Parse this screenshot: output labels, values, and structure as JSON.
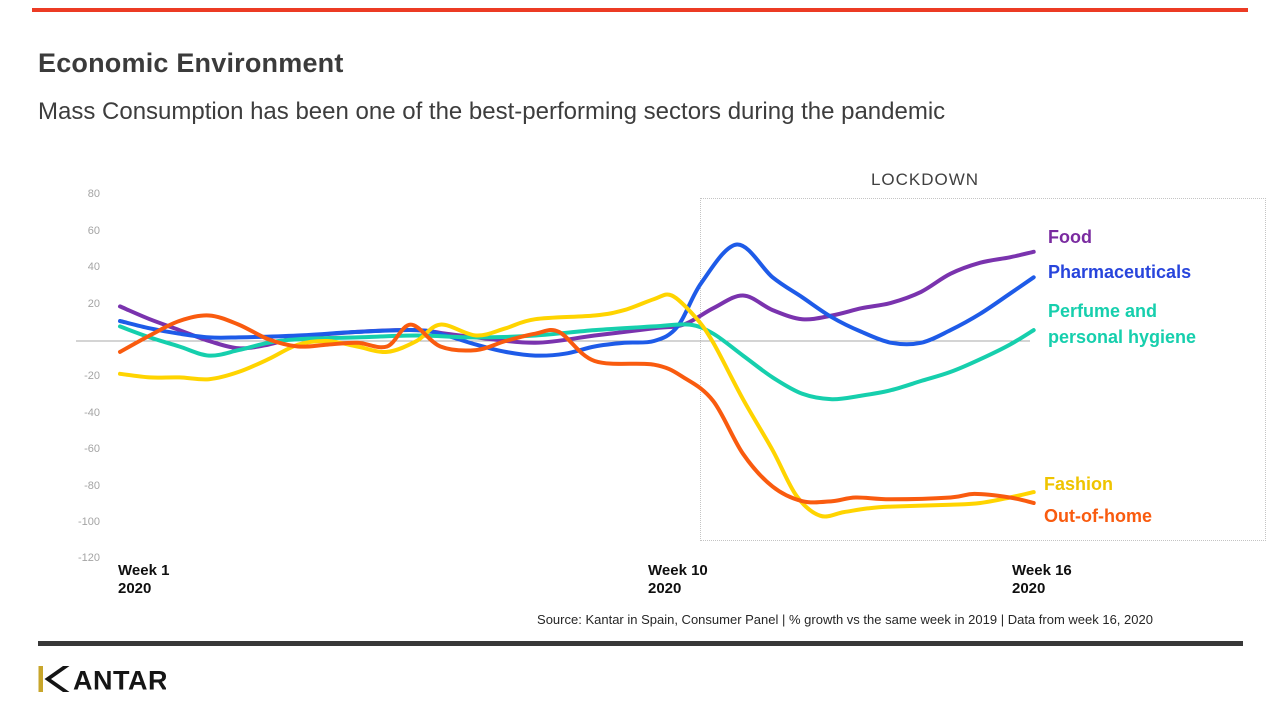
{
  "slide": {
    "title": "Economic Environment",
    "subtitle": "Mass Consumption has been one of the best-performing sectors during the pandemic",
    "source": "Source: Kantar in Spain, Consumer Panel | % growth vs the same week in 2019 | Data from week 16, 2020",
    "logo_text": "KANTAR",
    "colors": {
      "accent_bar": "#EC3B24",
      "footer_bar": "#383838",
      "logo_gold": "#C8A62B",
      "logo_black": "#151515",
      "zero_axis": "#a8a8a8"
    }
  },
  "chart_data": {
    "type": "line",
    "x_unit": "week of 2020",
    "x_range": [
      1,
      16.4
    ],
    "ylim": [
      -120,
      80
    ],
    "y_ticks": [
      80,
      60,
      40,
      20,
      -20,
      -40,
      -60,
      -80,
      -100,
      -120
    ],
    "grid": "zero-line-only",
    "legend_position": "right-inline-colored-labels",
    "annotation": {
      "label": "LOCKDOWN",
      "region_weeks": [
        10.8,
        16.4
      ]
    },
    "x_tick_labels": [
      {
        "week": 1,
        "text": "Week 1\n2020"
      },
      {
        "week": 10,
        "text": "Week 10\n2020"
      },
      {
        "week": 16,
        "text": "Week 16\n2020"
      }
    ],
    "series": [
      {
        "name": "Food",
        "label": "Food",
        "line_color": "#7A33AE",
        "label_color": "#7A2BA0",
        "points": [
          [
            1,
            19
          ],
          [
            1.5,
            12
          ],
          [
            2,
            6
          ],
          [
            2.5,
            0
          ],
          [
            3,
            -4
          ],
          [
            3.5,
            -2
          ],
          [
            4,
            2
          ],
          [
            5,
            5
          ],
          [
            6,
            6
          ],
          [
            6.5,
            4
          ],
          [
            7,
            2
          ],
          [
            8,
            -1
          ],
          [
            9,
            3
          ],
          [
            10,
            7
          ],
          [
            10.5,
            9
          ],
          [
            11,
            18
          ],
          [
            11.5,
            25
          ],
          [
            12,
            17
          ],
          [
            12.5,
            12
          ],
          [
            13,
            14
          ],
          [
            13.5,
            18
          ],
          [
            14,
            21
          ],
          [
            14.5,
            27
          ],
          [
            15,
            37
          ],
          [
            15.5,
            43
          ],
          [
            16,
            46
          ],
          [
            16.4,
            49
          ]
        ]
      },
      {
        "name": "Pharmaceuticals",
        "label": "Pharmaceuticals",
        "line_color": "#1E5BE8",
        "label_color": "#2845DC",
        "points": [
          [
            1,
            11
          ],
          [
            1.5,
            7
          ],
          [
            2,
            4
          ],
          [
            2.5,
            2
          ],
          [
            3,
            2
          ],
          [
            4,
            3
          ],
          [
            5,
            5
          ],
          [
            6,
            6
          ],
          [
            6.5,
            3
          ],
          [
            7,
            -2
          ],
          [
            7.5,
            -6
          ],
          [
            8,
            -8
          ],
          [
            8.5,
            -7
          ],
          [
            9,
            -3
          ],
          [
            9.5,
            -1
          ],
          [
            10,
            0
          ],
          [
            10.4,
            8
          ],
          [
            10.8,
            32
          ],
          [
            11.4,
            53
          ],
          [
            12,
            35
          ],
          [
            12.5,
            24
          ],
          [
            13,
            13
          ],
          [
            13.5,
            5
          ],
          [
            14,
            -1
          ],
          [
            14.5,
            -1
          ],
          [
            15,
            6
          ],
          [
            15.5,
            15
          ],
          [
            16,
            26
          ],
          [
            16.4,
            35
          ]
        ]
      },
      {
        "name": "Perfume and personal hygiene",
        "label": "Perfume and\npersonal hygiene",
        "line_color": "#16CFAD",
        "label_color": "#16CFAD",
        "points": [
          [
            1,
            8
          ],
          [
            1.5,
            2
          ],
          [
            2,
            -3
          ],
          [
            2.5,
            -8
          ],
          [
            3,
            -5
          ],
          [
            3.5,
            -1
          ],
          [
            4,
            1
          ],
          [
            5,
            2
          ],
          [
            6,
            3
          ],
          [
            7,
            2
          ],
          [
            8,
            3
          ],
          [
            9,
            6
          ],
          [
            10,
            8
          ],
          [
            10.6,
            9
          ],
          [
            11,
            4
          ],
          [
            11.5,
            -8
          ],
          [
            12,
            -20
          ],
          [
            12.5,
            -29
          ],
          [
            13,
            -32
          ],
          [
            13.5,
            -30
          ],
          [
            14,
            -27
          ],
          [
            14.5,
            -22
          ],
          [
            15,
            -17
          ],
          [
            15.5,
            -10
          ],
          [
            16,
            -2
          ],
          [
            16.4,
            6
          ]
        ]
      },
      {
        "name": "Fashion",
        "label": "Fashion",
        "line_color": "#FFD400",
        "label_color": "#EFC400",
        "points": [
          [
            1,
            -18
          ],
          [
            1.5,
            -20
          ],
          [
            2,
            -20
          ],
          [
            2.5,
            -21
          ],
          [
            3,
            -17
          ],
          [
            3.5,
            -10
          ],
          [
            4,
            -2
          ],
          [
            4.5,
            0
          ],
          [
            5,
            -3
          ],
          [
            5.5,
            -6
          ],
          [
            6,
            0
          ],
          [
            6.4,
            9
          ],
          [
            7,
            3
          ],
          [
            7.5,
            7
          ],
          [
            8,
            12
          ],
          [
            9,
            14
          ],
          [
            9.5,
            17
          ],
          [
            10,
            23
          ],
          [
            10.3,
            25
          ],
          [
            10.7,
            13
          ],
          [
            11,
            -1
          ],
          [
            11.5,
            -32
          ],
          [
            12,
            -60
          ],
          [
            12.4,
            -85
          ],
          [
            12.8,
            -96
          ],
          [
            13.2,
            -94
          ],
          [
            13.6,
            -92
          ],
          [
            14,
            -91
          ],
          [
            15,
            -90
          ],
          [
            15.5,
            -89
          ],
          [
            16,
            -86
          ],
          [
            16.4,
            -83
          ]
        ]
      },
      {
        "name": "Out-of-home",
        "label": "Out-of-home",
        "line_color": "#F95B0F",
        "label_color": "#F95B0F",
        "points": [
          [
            1,
            -6
          ],
          [
            1.5,
            3
          ],
          [
            2,
            11
          ],
          [
            2.5,
            14
          ],
          [
            3,
            9
          ],
          [
            3.5,
            1
          ],
          [
            4,
            -3
          ],
          [
            4.5,
            -2
          ],
          [
            5,
            -1
          ],
          [
            5.5,
            -3
          ],
          [
            5.9,
            9
          ],
          [
            6.4,
            -3
          ],
          [
            7,
            -5
          ],
          [
            7.5,
            0
          ],
          [
            8,
            4
          ],
          [
            8.4,
            5
          ],
          [
            9,
            -11
          ],
          [
            10,
            -13
          ],
          [
            10.5,
            -20
          ],
          [
            11,
            -33
          ],
          [
            11.5,
            -62
          ],
          [
            12,
            -80
          ],
          [
            12.5,
            -88
          ],
          [
            13,
            -88
          ],
          [
            13.4,
            -86
          ],
          [
            14,
            -87
          ],
          [
            15,
            -86
          ],
          [
            15.4,
            -84
          ],
          [
            16,
            -86
          ],
          [
            16.4,
            -89
          ]
        ]
      }
    ]
  }
}
